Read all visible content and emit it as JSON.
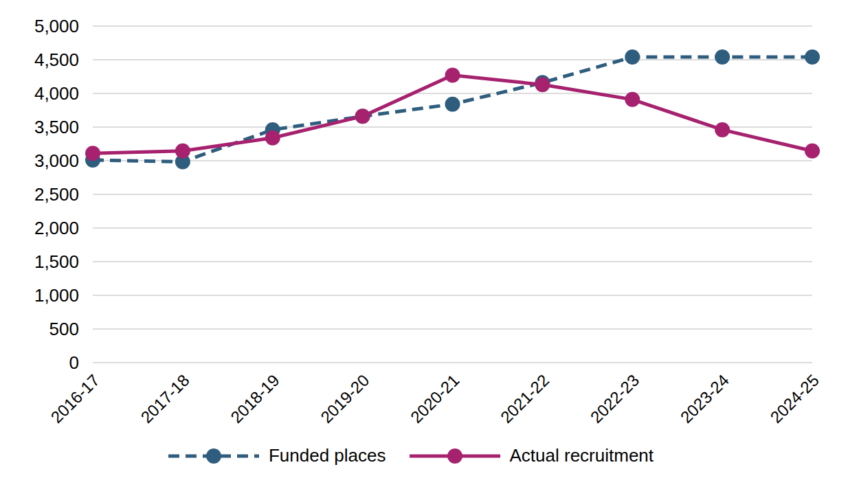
{
  "chart_data": {
    "type": "line",
    "categories": [
      "2016-17",
      "2017-18",
      "2018-19",
      "2019-20",
      "2020-21",
      "2021-22",
      "2022-23",
      "2023-24",
      "2024-25"
    ],
    "series": [
      {
        "name": "Funded places",
        "color": "#2e5d7e",
        "line_style": "dashed",
        "marker": "circle",
        "values": [
          3010,
          2985,
          3460,
          3660,
          3840,
          4160,
          4540,
          4540,
          4540
        ]
      },
      {
        "name": "Actual recruitment",
        "color": "#a6226f",
        "line_style": "solid",
        "marker": "circle",
        "values": [
          3110,
          3145,
          3340,
          3660,
          4270,
          4130,
          3910,
          3460,
          3145
        ]
      }
    ],
    "ylim": [
      0,
      5000
    ],
    "yticks": [
      0,
      500,
      {
        "value": 1000,
        "label": "1,000"
      },
      {
        "value": 1500,
        "label": "1,500"
      },
      {
        "value": 2000,
        "label": "2,000"
      },
      {
        "value": 2500,
        "label": "2,500"
      },
      {
        "value": 3000,
        "label": "3,000"
      },
      {
        "value": 3500,
        "label": "3,500"
      },
      {
        "value": 4000,
        "label": "4,000"
      },
      {
        "value": 4500,
        "label": "4,500"
      },
      {
        "value": 5000,
        "label": "5,000"
      }
    ],
    "grid": true,
    "legend": "bottom"
  }
}
